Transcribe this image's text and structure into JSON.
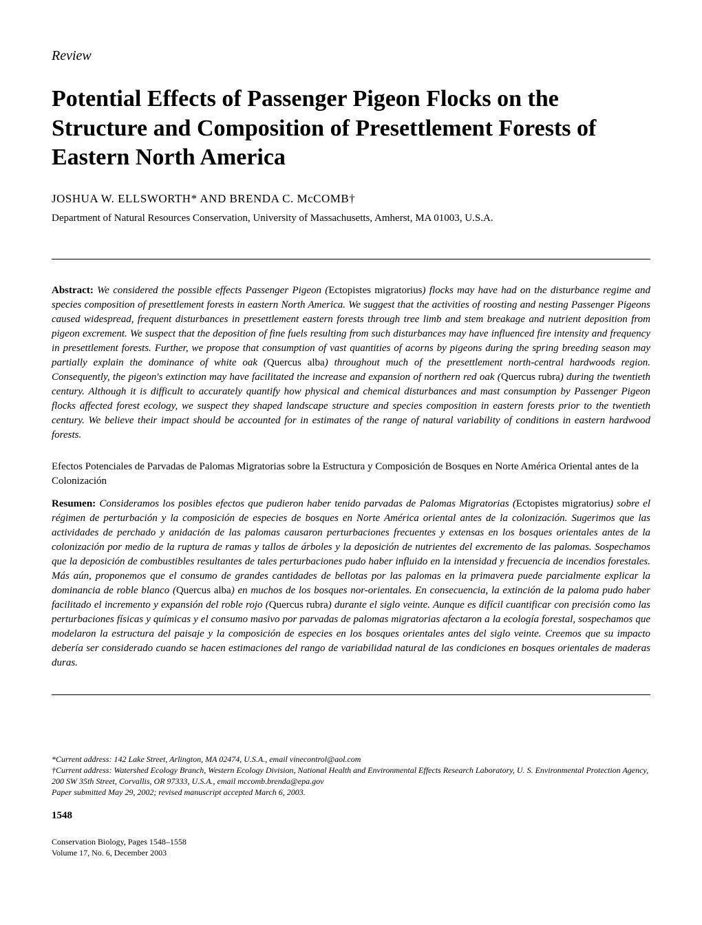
{
  "review_label": "Review",
  "title": "Potential Effects of Passenger Pigeon Flocks on the Structure and Composition of Presettlement Forests of Eastern North America",
  "authors": "JOSHUA W. ELLSWORTH* AND BRENDA C. McCOMB†",
  "affiliation": "Department of Natural Resources Conservation, University of Massachusetts, Amherst, MA 01003, U.S.A.",
  "abstract": {
    "label": "Abstract:",
    "text_part1": " We considered the possible effects Passenger Pigeon (",
    "species1": "Ectopistes migratorius",
    "text_part2": ") flocks may have had on the disturbance regime and species composition of presettlement forests in eastern North America. We suggest that the activities of roosting and nesting Passenger Pigeons caused widespread, frequent disturbances in presettlement eastern forests through tree limb and stem breakage and nutrient deposition from pigeon excrement. We suspect that the deposition of fine fuels resulting from such disturbances may have influenced fire intensity and frequency in presettlement forests. Further, we propose that consumption of vast quantities of acorns by pigeons during the spring breeding season may partially explain the dominance of white oak (",
    "species2": "Quercus alba",
    "text_part3": ") throughout much of the presettlement north-central hardwoods region. Consequently, the pigeon's extinction may have facilitated the increase and expansion of northern red oak (",
    "species3": "Quercus rubra",
    "text_part4": ") during the twentieth century. Although it is difficult to accurately quantify how physical and chemical disturbances and mast consumption by Passenger Pigeon flocks affected forest ecology, we suspect they shaped landscape structure and species composition in eastern forests prior to the twentieth century. We believe their impact should be accounted for in estimates of the range of natural variability of conditions in eastern hardwood forests."
  },
  "spanish_title": "Efectos Potenciales de Parvadas de Palomas Migratorias sobre la Estructura y Composición de Bosques en Norte América Oriental antes de la Colonización",
  "resumen": {
    "label": "Resumen:",
    "text_part1": " Consideramos los posibles efectos que pudieron haber tenido parvadas de Palomas Migratorias (",
    "species1": "Ectopistes migratorius",
    "text_part2": ") sobre el régimen de perturbación y la composición de especies de bosques en Norte América oriental antes de la colonización. Sugerimos que las actividades de perchado y anidación de las palomas causaron perturbaciones frecuentes y extensas en los bosques orientales antes de la colonización por medio de la ruptura de ramas y tallos de árboles y la deposición de nutrientes del excremento de las palomas. Sospechamos que la deposición de combustibles resultantes de tales perturbaciones pudo haber influido en la intensidad y frecuencia de incendios forestales. Más aún, proponemos que el consumo de grandes cantidades de bellotas por las palomas en la primavera puede parcialmente explicar la dominancia de roble blanco (",
    "species2": "Quercus alba",
    "text_part3": ") en muchos de los bosques nor-orientales. En consecuencia, la extinción de la paloma pudo haber facilitado el incremento y expansión del roble rojo (",
    "species3": "Quercus rubra",
    "text_part4": ") durante el siglo veinte. Aunque es difícil cuantificar con precisión como las perturbaciones físicas y químicas y el consumo masivo por parvadas de palomas migratorias afectaron a la ecología forestal, sospechamos que modelaron la estructura del paisaje y la composición de especies en los bosques orientales antes del siglo veinte. Creemos que su impacto debería ser considerado cuando se hacen estimaciones del rango de variabilidad natural de las condiciones en bosques orientales de maderas duras."
  },
  "footnotes": {
    "line1": "*Current address: 142 Lake Street, Arlington, MA 02474, U.S.A., email vinecontrol@aol.com",
    "line2": "†Current address: Watershed Ecology Branch, Western Ecology Division, National Health and Environmental Effects Research Laboratory, U. S. Environmental Protection Agency, 200 SW 35th Street, Corvallis, OR 97333, U.S.A., email mccomb.brenda@epa.gov",
    "line3": "Paper submitted May 29, 2002; revised manuscript accepted March 6, 2003."
  },
  "page_number": "1548",
  "journal_footer": {
    "line1": "Conservation Biology, Pages 1548–1558",
    "line2": "Volume 17, No. 6, December 2003"
  }
}
